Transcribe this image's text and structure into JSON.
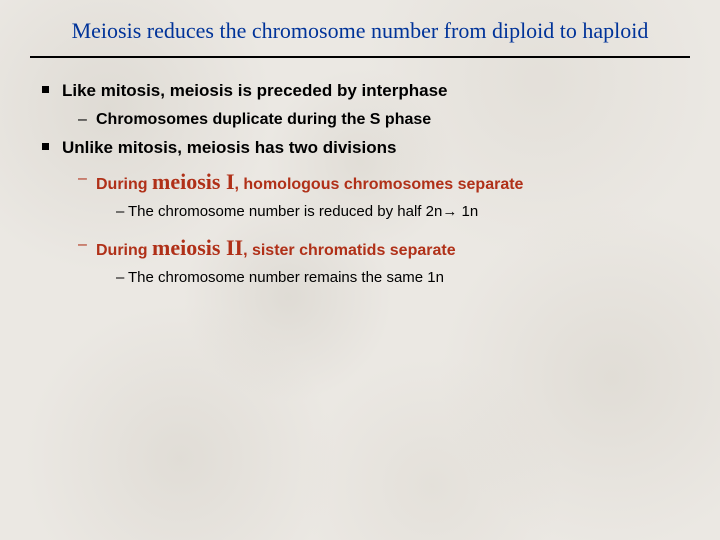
{
  "colors": {
    "title": "#003399",
    "accent": "#b03018",
    "text": "#000000",
    "rule": "#000000",
    "background_base": "#ebe8e3"
  },
  "typography": {
    "title_family": "Times New Roman",
    "body_family": "Verdana",
    "title_size_pt": 22,
    "lvl1_size_pt": 17,
    "lvl2_size_pt": 16,
    "lvl3_size_pt": 15,
    "big_term_size_pt": 22
  },
  "title": "Meiosis reduces the chromosome number from diploid to haploid",
  "bullets": {
    "a": {
      "text": "Like mitosis, meiosis is preceded by interphase",
      "sub1": "Chromosomes duplicate during the S phase"
    },
    "b": {
      "text": "Unlike mitosis, meiosis has two divisions",
      "m1": {
        "prefix": "During ",
        "term": "meiosis I",
        "suffix": ", homologous chromosomes separate",
        "detail": "The chromosome number is reduced by half 2n→ 1n"
      },
      "m2": {
        "prefix": "During ",
        "term": "meiosis II",
        "suffix": ", sister chromatids separate",
        "detail": "The chromosome number remains the same 1n"
      }
    }
  }
}
